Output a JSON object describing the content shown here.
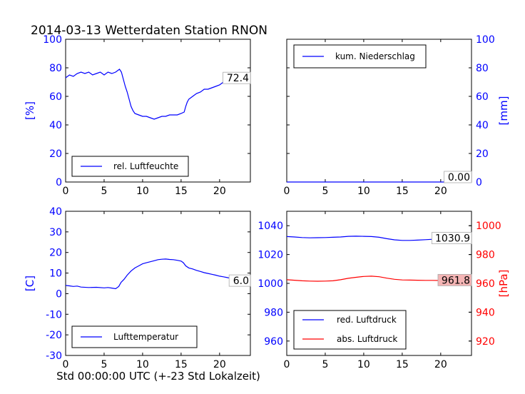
{
  "title": "2014-03-13 Wetterdaten Station RNON",
  "xlabel_bottom": "Std 00:00:00 UTC (+-23 Std Lokalzeit)",
  "colors": {
    "blue": "#0000ff",
    "red": "#ff0000",
    "label_bg_red": "#f4b4b4"
  },
  "chart_data": [
    {
      "id": "humidity",
      "type": "line",
      "ylabel": "[%]",
      "ylabel_side": "left",
      "ylim": [
        0,
        100
      ],
      "yticks": [
        0,
        20,
        40,
        60,
        80,
        100
      ],
      "xlim": [
        0,
        24
      ],
      "xticks": [
        0,
        5,
        10,
        15,
        20
      ],
      "legend": "lower-left",
      "last_value_label": "72.4",
      "series": [
        {
          "name": "rel. Luftfeuchte",
          "color": "#0000ff",
          "x": [
            0,
            0.5,
            1,
            1.5,
            2,
            2.5,
            3,
            3.5,
            4,
            4.5,
            5,
            5.5,
            6,
            6.5,
            7,
            7.25,
            7.5,
            7.75,
            8,
            8.25,
            8.5,
            8.75,
            9,
            9.5,
            10,
            10.5,
            11,
            11.5,
            12,
            12.5,
            13,
            13.5,
            14,
            14.5,
            15,
            15.4,
            15.6,
            15.8,
            16,
            16.5,
            17,
            17.5,
            18,
            18.5,
            19,
            19.5,
            20,
            20.5,
            21,
            21.5,
            22,
            22.5,
            23,
            23.5,
            24
          ],
          "values": [
            73,
            75,
            74,
            76,
            77,
            76,
            77,
            75,
            76,
            77,
            75,
            77,
            76,
            77,
            79,
            77,
            72,
            67,
            63,
            58,
            53,
            50,
            48,
            47,
            46,
            46,
            45,
            44,
            45,
            46,
            46,
            47,
            47,
            47,
            48,
            49,
            53,
            56,
            58,
            60,
            62,
            63,
            65,
            65,
            66,
            67,
            68,
            70,
            70,
            72,
            73,
            74,
            73,
            73,
            72.4
          ]
        }
      ]
    },
    {
      "id": "precipitation",
      "type": "line",
      "ylabel": "[mm]",
      "ylabel_side": "right",
      "ylim": [
        0,
        100
      ],
      "yticks": [
        0,
        20,
        40,
        60,
        80,
        100
      ],
      "xlim": [
        0,
        24
      ],
      "xticks": [
        0,
        5,
        10,
        15,
        20
      ],
      "legend": "upper-left",
      "last_value_label": "0.00",
      "series": [
        {
          "name": "kum. Niederschlag",
          "color": "#0000ff",
          "x": [
            0,
            24
          ],
          "values": [
            0,
            0
          ]
        }
      ]
    },
    {
      "id": "temperature",
      "type": "line",
      "ylabel": "[C]",
      "ylabel_side": "left",
      "ylim": [
        -30,
        40
      ],
      "yticks": [
        -30,
        -20,
        -10,
        0,
        10,
        20,
        30,
        40
      ],
      "xlim": [
        0,
        24
      ],
      "xticks": [
        0,
        5,
        10,
        15,
        20
      ],
      "legend": "lower-left",
      "last_value_label": "6.0",
      "series": [
        {
          "name": "Lufttemperatur",
          "color": "#0000ff",
          "x": [
            0,
            0.5,
            1,
            1.5,
            2,
            3,
            4,
            5,
            5.5,
            6,
            6.5,
            6.9,
            7.2,
            7.6,
            8,
            8.5,
            9,
            9.5,
            10,
            10.5,
            11,
            11.5,
            12,
            12.5,
            13,
            13.5,
            14,
            14.5,
            15,
            15.3,
            15.6,
            16,
            16.5,
            17,
            17.5,
            18,
            18.5,
            19,
            19.5,
            20,
            20.5,
            21,
            21.5,
            22,
            22.5,
            23,
            23.5,
            24
          ],
          "values": [
            4,
            3.8,
            3.5,
            3.7,
            3.2,
            3,
            3.1,
            2.8,
            3,
            2.7,
            2.4,
            3.5,
            5.5,
            7,
            9,
            11,
            12.5,
            13.5,
            14.5,
            15,
            15.5,
            16,
            16.5,
            16.7,
            16.8,
            16.6,
            16.5,
            16.2,
            15.8,
            15,
            13.5,
            12.5,
            12,
            11.3,
            10.8,
            10.2,
            9.8,
            9.4,
            9,
            8.5,
            8.2,
            7.8,
            7.4,
            7,
            6.8,
            6.5,
            6.2,
            6
          ]
        }
      ]
    },
    {
      "id": "pressure",
      "type": "line",
      "ylabel": "[hPa]",
      "ylabel_side": "right",
      "ylim_left": [
        950,
        1050
      ],
      "yticks_left": [
        960,
        980,
        1000,
        1020,
        1040
      ],
      "ylim_right": [
        910,
        1010
      ],
      "yticks_right": [
        920,
        940,
        960,
        980,
        1000
      ],
      "xlim": [
        0,
        24
      ],
      "xticks": [
        0,
        5,
        10,
        15,
        20
      ],
      "legend": "lower-left",
      "series": [
        {
          "name": "red. Luftdruck",
          "color": "#0000ff",
          "axis": "left",
          "last_value_label": "1030.9",
          "x": [
            0,
            1,
            2,
            3,
            4,
            5,
            6,
            7,
            8,
            9,
            10,
            11,
            12,
            13,
            14,
            15,
            16,
            17,
            18,
            19,
            20,
            21,
            22,
            23,
            24
          ],
          "values": [
            1032.5,
            1032.2,
            1031.8,
            1031.6,
            1031.7,
            1031.8,
            1032,
            1032.2,
            1032.6,
            1032.7,
            1032.6,
            1032.5,
            1032,
            1031,
            1030.2,
            1029.8,
            1029.8,
            1030,
            1030.3,
            1030.6,
            1030.8,
            1031,
            1031,
            1031,
            1030.9
          ]
        },
        {
          "name": "abs. Luftdruck",
          "color": "#ff0000",
          "axis": "right",
          "last_value_label": "961.8",
          "x": [
            0,
            1,
            2,
            3,
            4,
            5,
            6,
            7,
            8,
            9,
            10,
            11,
            12,
            13,
            14,
            15,
            16,
            17,
            18,
            19,
            20,
            21,
            22,
            23,
            24
          ],
          "values": [
            962.5,
            962.2,
            961.8,
            961.6,
            961.5,
            961.6,
            961.8,
            962.5,
            963.5,
            964.2,
            964.8,
            965,
            964.6,
            963.6,
            962.8,
            962.4,
            962.3,
            962.2,
            962.1,
            962.1,
            962,
            962,
            961.9,
            961.9,
            961.8
          ]
        }
      ]
    }
  ]
}
